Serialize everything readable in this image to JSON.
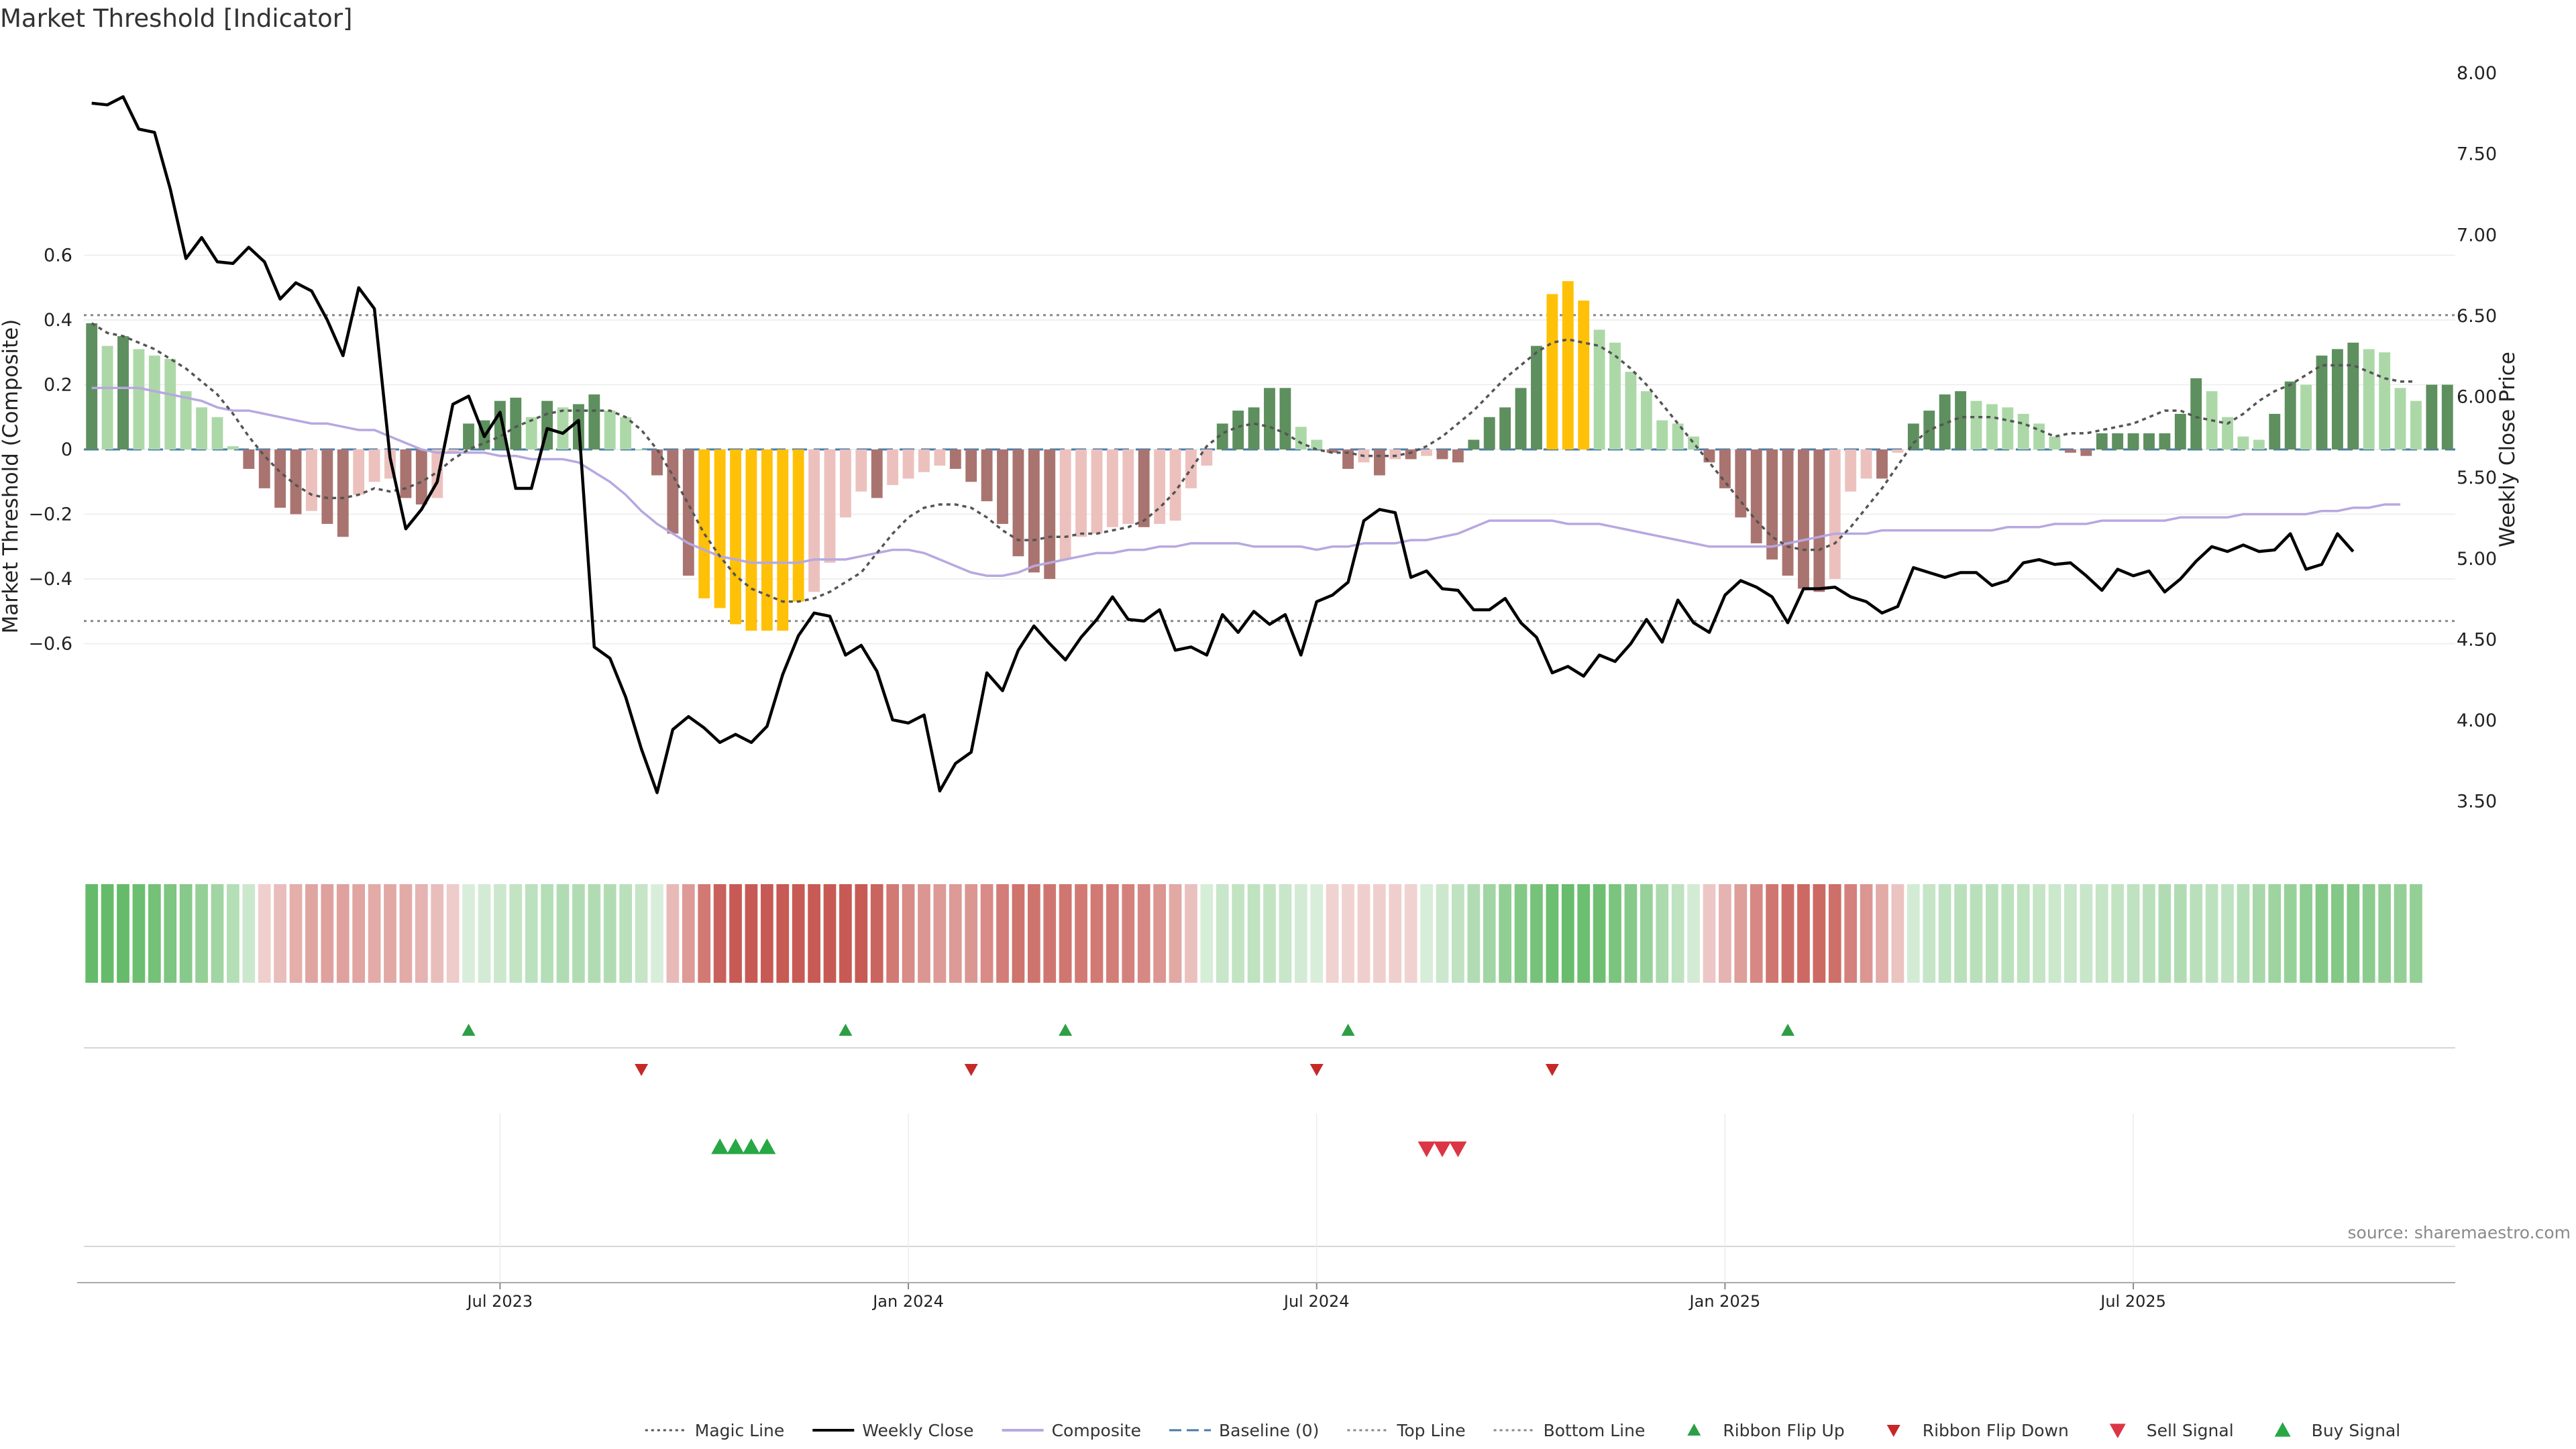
{
  "chart_data": {
    "type": "bar",
    "title": "Market Threshold [Indicator]",
    "ylabel_left": "Market Threshold (Composite)",
    "ylabel_right": "Weekly Close Price",
    "source": "source: sharemaestro.com",
    "ylim_left": [
      -0.65,
      0.62
    ],
    "ylim_right": [
      3.3,
      8.1
    ],
    "yticks_left": [
      "0.6",
      "0.4",
      "0.2",
      "0",
      "−0.2",
      "−0.4",
      "−0.6"
    ],
    "yticks_right": [
      "8.00",
      "7.50",
      "7.00",
      "6.50",
      "6.00",
      "5.50",
      "5.00",
      "4.50",
      "4.00",
      "3.50"
    ],
    "x_ticks": [
      {
        "week": 26,
        "label": "Jul 2023"
      },
      {
        "week": 52,
        "label": "Jan 2024"
      },
      {
        "week": 78,
        "label": "Jul 2024"
      },
      {
        "week": 104,
        "label": "Jan 2025"
      },
      {
        "week": 130,
        "label": "Jul 2025"
      }
    ],
    "top_line": 0.415,
    "bottom_line": -0.53,
    "baseline": 0,
    "bars": [
      0.39,
      0.32,
      0.35,
      0.31,
      0.29,
      0.28,
      0.18,
      0.13,
      0.1,
      0.01,
      -0.06,
      -0.12,
      -0.18,
      -0.2,
      -0.19,
      -0.23,
      -0.27,
      -0.14,
      -0.1,
      -0.09,
      -0.15,
      -0.17,
      -0.15,
      -0.01,
      0.08,
      0.09,
      0.15,
      0.16,
      0.1,
      0.15,
      0.13,
      0.14,
      0.17,
      0.12,
      0.1,
      0.0,
      -0.08,
      -0.26,
      -0.39,
      -0.46,
      -0.49,
      -0.54,
      -0.56,
      -0.56,
      -0.56,
      -0.47,
      -0.44,
      -0.35,
      -0.21,
      -0.13,
      -0.15,
      -0.11,
      -0.09,
      -0.07,
      -0.05,
      -0.06,
      -0.1,
      -0.16,
      -0.23,
      -0.33,
      -0.38,
      -0.4,
      -0.34,
      -0.27,
      -0.26,
      -0.24,
      -0.23,
      -0.24,
      -0.23,
      -0.22,
      -0.12,
      -0.05,
      0.08,
      0.12,
      0.13,
      0.19,
      0.19,
      0.07,
      0.03,
      -0.01,
      -0.06,
      -0.04,
      -0.08,
      -0.03,
      -0.03,
      -0.02,
      -0.03,
      -0.04,
      0.03,
      0.1,
      0.13,
      0.19,
      0.32,
      0.48,
      0.52,
      0.46,
      0.37,
      0.33,
      0.24,
      0.18,
      0.09,
      0.08,
      0.04,
      -0.04,
      -0.12,
      -0.21,
      -0.29,
      -0.34,
      -0.39,
      -0.43,
      -0.44,
      -0.4,
      -0.13,
      -0.09,
      -0.09,
      -0.01,
      0.08,
      0.12,
      0.17,
      0.18,
      0.15,
      0.14,
      0.13,
      0.11,
      0.08,
      0.04,
      -0.01,
      -0.02,
      0.05,
      0.05,
      0.05,
      0.05,
      0.05,
      0.11,
      0.22,
      0.18,
      0.1,
      0.04,
      0.03,
      0.11,
      0.21,
      0.2,
      0.29,
      0.31,
      0.33,
      0.31,
      0.3,
      0.19,
      0.15,
      0.2,
      0.2
    ],
    "close": [
      7.81,
      7.8,
      7.85,
      7.65,
      7.63,
      7.28,
      6.85,
      6.98,
      6.83,
      6.82,
      6.92,
      6.83,
      6.6,
      6.7,
      6.65,
      6.47,
      6.25,
      6.67,
      6.54,
      5.62,
      5.18,
      5.3,
      5.47,
      5.95,
      6.0,
      5.75,
      5.9,
      5.43,
      5.43,
      5.8,
      5.77,
      5.85,
      4.45,
      4.38,
      4.14,
      3.82,
      3.55,
      3.94,
      4.02,
      3.95,
      3.86,
      3.91,
      3.86,
      3.96,
      4.28,
      4.52,
      4.66,
      4.64,
      4.4,
      4.46,
      4.3,
      4.0,
      3.98,
      4.03,
      3.56,
      3.73,
      3.8,
      4.29,
      4.18,
      4.43,
      4.58,
      4.47,
      4.37,
      4.51,
      4.62,
      4.76,
      4.62,
      4.61,
      4.68,
      4.43,
      4.45,
      4.4,
      4.65,
      4.54,
      4.67,
      4.59,
      4.65,
      4.4,
      4.73,
      4.77,
      4.85,
      5.23,
      5.3,
      5.28,
      4.88,
      4.92,
      4.81,
      4.8,
      4.68,
      4.68,
      4.75,
      4.6,
      4.51,
      4.29,
      4.33,
      4.27,
      4.4,
      4.36,
      4.47,
      4.62,
      4.48,
      4.74,
      4.6,
      4.54,
      4.77,
      4.86,
      4.82,
      4.76,
      4.6,
      4.81,
      4.81,
      4.82,
      4.76,
      4.73,
      4.66,
      4.7,
      4.94,
      4.91,
      4.88,
      4.91,
      4.91,
      4.83,
      4.86,
      4.97,
      4.99,
      4.96,
      4.97,
      4.89,
      4.8,
      4.93,
      4.89,
      4.92,
      4.79,
      4.87,
      4.98,
      5.07,
      5.04,
      5.08,
      5.04,
      5.05,
      5.15,
      4.93,
      4.96,
      5.15,
      5.04
    ],
    "magic": [
      0.39,
      0.36,
      0.35,
      0.33,
      0.31,
      0.28,
      0.25,
      0.21,
      0.17,
      0.11,
      0.04,
      -0.02,
      -0.07,
      -0.11,
      -0.14,
      -0.15,
      -0.15,
      -0.14,
      -0.12,
      -0.13,
      -0.12,
      -0.1,
      -0.07,
      -0.03,
      0.0,
      0.02,
      0.04,
      0.07,
      0.09,
      0.11,
      0.12,
      0.12,
      0.12,
      0.12,
      0.1,
      0.06,
      0.0,
      -0.08,
      -0.17,
      -0.26,
      -0.33,
      -0.39,
      -0.43,
      -0.45,
      -0.47,
      -0.47,
      -0.46,
      -0.44,
      -0.41,
      -0.38,
      -0.32,
      -0.26,
      -0.21,
      -0.18,
      -0.17,
      -0.17,
      -0.18,
      -0.21,
      -0.25,
      -0.28,
      -0.28,
      -0.27,
      -0.27,
      -0.26,
      -0.26,
      -0.25,
      -0.24,
      -0.22,
      -0.18,
      -0.13,
      -0.06,
      0.01,
      0.05,
      0.07,
      0.08,
      0.07,
      0.05,
      0.02,
      0.0,
      -0.01,
      -0.01,
      -0.02,
      -0.02,
      -0.02,
      -0.01,
      0.01,
      0.04,
      0.08,
      0.12,
      0.17,
      0.22,
      0.26,
      0.3,
      0.33,
      0.34,
      0.33,
      0.32,
      0.29,
      0.25,
      0.2,
      0.14,
      0.08,
      0.02,
      -0.04,
      -0.1,
      -0.16,
      -0.22,
      -0.27,
      -0.3,
      -0.31,
      -0.31,
      -0.29,
      -0.24,
      -0.18,
      -0.12,
      -0.05,
      0.02,
      0.06,
      0.08,
      0.1,
      0.1,
      0.1,
      0.09,
      0.08,
      0.06,
      0.04,
      0.05,
      0.05,
      0.06,
      0.07,
      0.08,
      0.1,
      0.12,
      0.12,
      0.1,
      0.09,
      0.08,
      0.11,
      0.15,
      0.18,
      0.2,
      0.23,
      0.26,
      0.26,
      0.26,
      0.24,
      0.22,
      0.21,
      0.21
    ],
    "composite": [
      0.19,
      0.19,
      0.19,
      0.19,
      0.18,
      0.17,
      0.16,
      0.15,
      0.13,
      0.12,
      0.12,
      0.11,
      0.1,
      0.09,
      0.08,
      0.08,
      0.07,
      0.06,
      0.06,
      0.04,
      0.02,
      0.0,
      -0.01,
      -0.01,
      -0.01,
      -0.01,
      -0.02,
      -0.02,
      -0.03,
      -0.03,
      -0.03,
      -0.04,
      -0.07,
      -0.1,
      -0.14,
      -0.19,
      -0.23,
      -0.26,
      -0.29,
      -0.31,
      -0.33,
      -0.34,
      -0.35,
      -0.35,
      -0.35,
      -0.35,
      -0.34,
      -0.34,
      -0.34,
      -0.33,
      -0.32,
      -0.31,
      -0.31,
      -0.32,
      -0.34,
      -0.36,
      -0.38,
      -0.39,
      -0.39,
      -0.38,
      -0.36,
      -0.35,
      -0.34,
      -0.33,
      -0.32,
      -0.32,
      -0.31,
      -0.31,
      -0.3,
      -0.3,
      -0.29,
      -0.29,
      -0.29,
      -0.29,
      -0.3,
      -0.3,
      -0.3,
      -0.3,
      -0.31,
      -0.3,
      -0.3,
      -0.29,
      -0.29,
      -0.29,
      -0.28,
      -0.28,
      -0.27,
      -0.26,
      -0.24,
      -0.22,
      -0.22,
      -0.22,
      -0.22,
      -0.22,
      -0.23,
      -0.23,
      -0.23,
      -0.24,
      -0.25,
      -0.26,
      -0.27,
      -0.28,
      -0.29,
      -0.3,
      -0.3,
      -0.3,
      -0.3,
      -0.3,
      -0.29,
      -0.28,
      -0.27,
      -0.26,
      -0.26,
      -0.26,
      -0.25,
      -0.25,
      -0.25,
      -0.25,
      -0.25,
      -0.25,
      -0.25,
      -0.25,
      -0.24,
      -0.24,
      -0.24,
      -0.23,
      -0.23,
      -0.23,
      -0.22,
      -0.22,
      -0.22,
      -0.22,
      -0.22,
      -0.21,
      -0.21,
      -0.21,
      -0.21,
      -0.2,
      -0.2,
      -0.2,
      -0.2,
      -0.2,
      -0.19,
      -0.19,
      -0.18,
      -0.18,
      -0.17,
      -0.17
    ],
    "ribbon_flip_up_weeks": [
      24,
      48,
      62,
      80,
      108
    ],
    "ribbon_flip_down_weeks": [
      35,
      56,
      78,
      93
    ],
    "buy_signal_weeks": [
      40,
      41,
      42,
      43
    ],
    "sell_signal_weeks": [
      85,
      86,
      87
    ],
    "legend": {
      "position": "bottom-center",
      "entries": [
        {
          "label": "Magic Line",
          "kind": "dotted-line",
          "color": "#555555"
        },
        {
          "label": "Weekly Close",
          "kind": "solid-line",
          "color": "#000000"
        },
        {
          "label": "Composite",
          "kind": "solid-line",
          "color": "#b7a8e0"
        },
        {
          "label": "Baseline (0)",
          "kind": "dashed-line",
          "color": "#4a79a8"
        },
        {
          "label": "Top Line",
          "kind": "dotted-line",
          "color": "#888888"
        },
        {
          "label": "Bottom Line",
          "kind": "dotted-line",
          "color": "#888888"
        },
        {
          "label": "Ribbon Flip Up",
          "kind": "triangle-up",
          "color": "#2e9e46"
        },
        {
          "label": "Ribbon Flip Down",
          "kind": "triangle-down",
          "color": "#c62828"
        },
        {
          "label": "Sell Signal",
          "kind": "triangle-down-large",
          "color": "#dc3545"
        },
        {
          "label": "Buy Signal",
          "kind": "triangle-up-large",
          "color": "#28a745"
        }
      ]
    },
    "colors": {
      "bar_pos_strong": "#5e8f5e",
      "bar_pos_weak": "#acd8a8",
      "bar_neg_strong": "#a97470",
      "bar_neg_weak": "#ecc1bd",
      "bar_extreme": "#ffc107",
      "close_line": "#000000",
      "composite_line": "#b7a8e0",
      "magic_line": "#555555",
      "baseline": "#4a79a8",
      "threshold_lines": "#888888",
      "ribbon_pos": "#66bb6a",
      "ribbon_neg": "#c75a54"
    }
  }
}
